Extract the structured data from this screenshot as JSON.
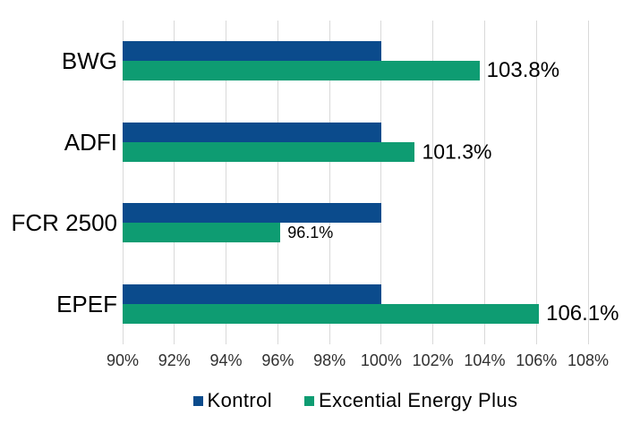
{
  "chart_data": {
    "type": "bar",
    "orientation": "horizontal",
    "title": "",
    "xlabel": "",
    "ylabel": "",
    "categories": [
      "BWG",
      "ADFI",
      "FCR 2500",
      "EPEF"
    ],
    "series": [
      {
        "name": "Kontrol",
        "color": "#0B4B8C",
        "values": [
          100,
          100,
          100,
          100
        ],
        "value_labels": [
          "",
          "",
          "",
          ""
        ]
      },
      {
        "name": "Excential Energy Plus",
        "color": "#0E9C72",
        "values": [
          103.8,
          101.3,
          96.1,
          106.1
        ],
        "value_labels": [
          "103.8%",
          "101.3%",
          "96.1%",
          "106.1%"
        ]
      }
    ],
    "xlim": [
      90,
      108
    ],
    "x_ticks": [
      90,
      92,
      94,
      96,
      98,
      100,
      102,
      104,
      106,
      108
    ],
    "x_tick_labels": [
      "90%",
      "92%",
      "94%",
      "96%",
      "98%",
      "100%",
      "102%",
      "104%",
      "106%",
      "108%"
    ],
    "grid": "vertical",
    "gridline_color": "#D9D9D9",
    "background_color": "#FFFFFF",
    "text_color": "#000000",
    "axis_label_color": "#303030",
    "legend_position": "bottom",
    "value_label_font_px": [
      24,
      23,
      18,
      24
    ]
  }
}
